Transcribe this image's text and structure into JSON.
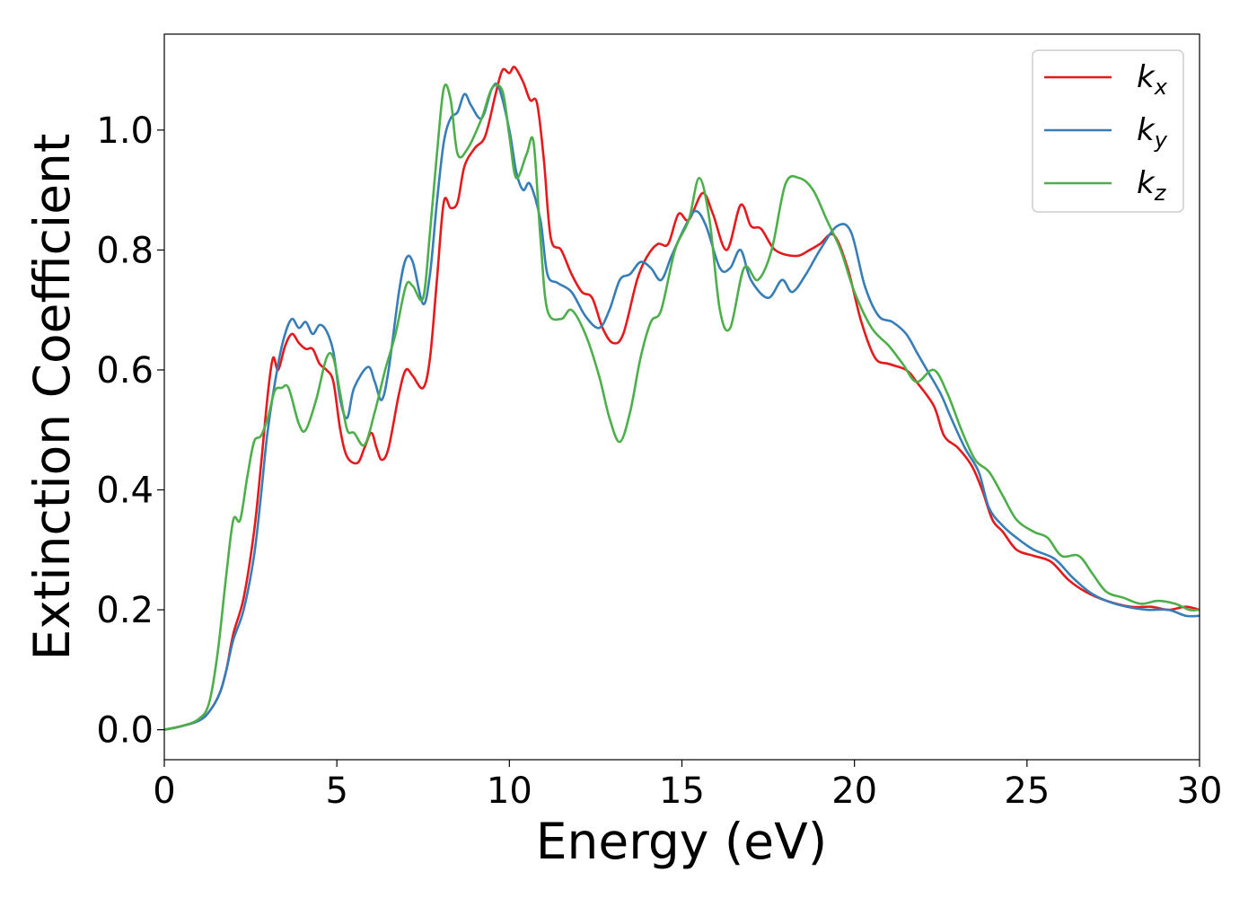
{
  "chart_data": {
    "type": "line",
    "title": "",
    "xlabel": "Energy (eV)",
    "ylabel": "Extinction Coefficient",
    "xlim": [
      0,
      30
    ],
    "ylim": [
      -0.05,
      1.16
    ],
    "xticks": [
      0,
      5,
      10,
      15,
      20,
      25,
      30
    ],
    "yticks": [
      0.0,
      0.2,
      0.4,
      0.6,
      0.8,
      1.0
    ],
    "grid": false,
    "legend_position": "top-right",
    "series": [
      {
        "name": "k",
        "subscript": "x",
        "color": "#e41a1c",
        "points": [
          [
            0,
            0
          ],
          [
            0.5,
            0.006
          ],
          [
            1,
            0.015
          ],
          [
            1.3,
            0.03
          ],
          [
            1.6,
            0.06
          ],
          [
            1.8,
            0.1
          ],
          [
            2,
            0.16
          ],
          [
            2.3,
            0.22
          ],
          [
            2.6,
            0.33
          ],
          [
            2.8,
            0.44
          ],
          [
            3,
            0.56
          ],
          [
            3.15,
            0.62
          ],
          [
            3.3,
            0.6
          ],
          [
            3.5,
            0.64
          ],
          [
            3.7,
            0.66
          ],
          [
            3.9,
            0.645
          ],
          [
            4.1,
            0.635
          ],
          [
            4.3,
            0.635
          ],
          [
            4.5,
            0.61
          ],
          [
            4.7,
            0.6
          ],
          [
            4.9,
            0.58
          ],
          [
            5.1,
            0.5
          ],
          [
            5.3,
            0.455
          ],
          [
            5.6,
            0.445
          ],
          [
            5.8,
            0.47
          ],
          [
            6,
            0.495
          ],
          [
            6.15,
            0.47
          ],
          [
            6.3,
            0.45
          ],
          [
            6.5,
            0.47
          ],
          [
            6.8,
            0.56
          ],
          [
            7,
            0.6
          ],
          [
            7.2,
            0.59
          ],
          [
            7.5,
            0.57
          ],
          [
            7.7,
            0.62
          ],
          [
            7.9,
            0.75
          ],
          [
            8.1,
            0.88
          ],
          [
            8.3,
            0.87
          ],
          [
            8.5,
            0.88
          ],
          [
            8.7,
            0.94
          ],
          [
            9,
            0.97
          ],
          [
            9.3,
            0.99
          ],
          [
            9.6,
            1.06
          ],
          [
            9.8,
            1.1
          ],
          [
            10,
            1.095
          ],
          [
            10.15,
            1.105
          ],
          [
            10.4,
            1.08
          ],
          [
            10.6,
            1.05
          ],
          [
            10.8,
            1.045
          ],
          [
            11,
            0.95
          ],
          [
            11.2,
            0.82
          ],
          [
            11.5,
            0.8
          ],
          [
            11.8,
            0.76
          ],
          [
            12.1,
            0.73
          ],
          [
            12.4,
            0.72
          ],
          [
            12.7,
            0.67
          ],
          [
            13,
            0.645
          ],
          [
            13.3,
            0.66
          ],
          [
            13.7,
            0.75
          ],
          [
            14,
            0.79
          ],
          [
            14.3,
            0.81
          ],
          [
            14.6,
            0.81
          ],
          [
            14.9,
            0.86
          ],
          [
            15.2,
            0.85
          ],
          [
            15.6,
            0.895
          ],
          [
            15.9,
            0.86
          ],
          [
            16.3,
            0.8
          ],
          [
            16.7,
            0.875
          ],
          [
            17,
            0.84
          ],
          [
            17.3,
            0.835
          ],
          [
            17.7,
            0.8
          ],
          [
            18.3,
            0.79
          ],
          [
            18.7,
            0.8
          ],
          [
            19,
            0.81
          ],
          [
            19.4,
            0.825
          ],
          [
            19.8,
            0.77
          ],
          [
            20.2,
            0.68
          ],
          [
            20.6,
            0.62
          ],
          [
            21,
            0.61
          ],
          [
            21.5,
            0.6
          ],
          [
            21.8,
            0.58
          ],
          [
            22.3,
            0.54
          ],
          [
            22.6,
            0.49
          ],
          [
            23,
            0.47
          ],
          [
            23.4,
            0.44
          ],
          [
            23.7,
            0.4
          ],
          [
            24,
            0.35
          ],
          [
            24.3,
            0.33
          ],
          [
            24.7,
            0.3
          ],
          [
            25.2,
            0.29
          ],
          [
            25.7,
            0.28
          ],
          [
            26.2,
            0.25
          ],
          [
            26.7,
            0.23
          ],
          [
            27.3,
            0.215
          ],
          [
            28,
            0.205
          ],
          [
            28.6,
            0.205
          ],
          [
            29.1,
            0.2
          ],
          [
            29.6,
            0.205
          ],
          [
            30,
            0.2
          ]
        ]
      },
      {
        "name": "k",
        "subscript": "y",
        "color": "#377eb8",
        "points": [
          [
            0,
            0
          ],
          [
            0.5,
            0.006
          ],
          [
            1,
            0.015
          ],
          [
            1.3,
            0.03
          ],
          [
            1.6,
            0.06
          ],
          [
            1.8,
            0.1
          ],
          [
            2,
            0.15
          ],
          [
            2.3,
            0.2
          ],
          [
            2.6,
            0.29
          ],
          [
            2.8,
            0.39
          ],
          [
            3,
            0.5
          ],
          [
            3.3,
            0.61
          ],
          [
            3.5,
            0.66
          ],
          [
            3.7,
            0.685
          ],
          [
            3.9,
            0.67
          ],
          [
            4.1,
            0.68
          ],
          [
            4.3,
            0.66
          ],
          [
            4.5,
            0.675
          ],
          [
            4.7,
            0.665
          ],
          [
            4.9,
            0.63
          ],
          [
            5.1,
            0.55
          ],
          [
            5.3,
            0.52
          ],
          [
            5.5,
            0.57
          ],
          [
            5.9,
            0.605
          ],
          [
            6.1,
            0.58
          ],
          [
            6.3,
            0.55
          ],
          [
            6.5,
            0.6
          ],
          [
            6.8,
            0.73
          ],
          [
            7,
            0.785
          ],
          [
            7.2,
            0.78
          ],
          [
            7.5,
            0.71
          ],
          [
            7.7,
            0.76
          ],
          [
            7.9,
            0.88
          ],
          [
            8.1,
            0.98
          ],
          [
            8.3,
            1.02
          ],
          [
            8.5,
            1.03
          ],
          [
            8.7,
            1.06
          ],
          [
            8.9,
            1.04
          ],
          [
            9.2,
            1.02
          ],
          [
            9.5,
            1.07
          ],
          [
            9.7,
            1.07
          ],
          [
            10,
            1.0
          ],
          [
            10.2,
            0.93
          ],
          [
            10.4,
            0.9
          ],
          [
            10.6,
            0.91
          ],
          [
            10.9,
            0.85
          ],
          [
            11.1,
            0.76
          ],
          [
            11.4,
            0.745
          ],
          [
            11.8,
            0.73
          ],
          [
            12.2,
            0.69
          ],
          [
            12.6,
            0.67
          ],
          [
            12.9,
            0.7
          ],
          [
            13.2,
            0.75
          ],
          [
            13.5,
            0.76
          ],
          [
            13.8,
            0.78
          ],
          [
            14.1,
            0.77
          ],
          [
            14.4,
            0.75
          ],
          [
            14.7,
            0.79
          ],
          [
            15.1,
            0.84
          ],
          [
            15.4,
            0.865
          ],
          [
            15.7,
            0.84
          ],
          [
            16.1,
            0.77
          ],
          [
            16.4,
            0.77
          ],
          [
            16.7,
            0.8
          ],
          [
            17,
            0.75
          ],
          [
            17.5,
            0.72
          ],
          [
            17.9,
            0.75
          ],
          [
            18.2,
            0.73
          ],
          [
            18.6,
            0.76
          ],
          [
            19,
            0.8
          ],
          [
            19.5,
            0.84
          ],
          [
            19.9,
            0.83
          ],
          [
            20.3,
            0.74
          ],
          [
            20.7,
            0.69
          ],
          [
            21.1,
            0.68
          ],
          [
            21.5,
            0.66
          ],
          [
            21.8,
            0.63
          ],
          [
            22.1,
            0.6
          ],
          [
            22.5,
            0.56
          ],
          [
            22.8,
            0.52
          ],
          [
            23.2,
            0.47
          ],
          [
            23.6,
            0.43
          ],
          [
            23.9,
            0.37
          ],
          [
            24.3,
            0.34
          ],
          [
            24.7,
            0.32
          ],
          [
            25.2,
            0.3
          ],
          [
            25.8,
            0.285
          ],
          [
            26.3,
            0.255
          ],
          [
            26.8,
            0.23
          ],
          [
            27.3,
            0.215
          ],
          [
            27.9,
            0.205
          ],
          [
            28.5,
            0.2
          ],
          [
            29.1,
            0.2
          ],
          [
            29.6,
            0.19
          ],
          [
            30,
            0.19
          ]
        ]
      },
      {
        "name": "k",
        "subscript": "z",
        "color": "#4daf4a",
        "points": [
          [
            0,
            0
          ],
          [
            0.5,
            0.006
          ],
          [
            1,
            0.018
          ],
          [
            1.3,
            0.045
          ],
          [
            1.55,
            0.13
          ],
          [
            1.8,
            0.26
          ],
          [
            2,
            0.35
          ],
          [
            2.2,
            0.35
          ],
          [
            2.4,
            0.42
          ],
          [
            2.6,
            0.48
          ],
          [
            2.8,
            0.49
          ],
          [
            3,
            0.52
          ],
          [
            3.2,
            0.565
          ],
          [
            3.4,
            0.57
          ],
          [
            3.6,
            0.57
          ],
          [
            3.9,
            0.51
          ],
          [
            4.1,
            0.5
          ],
          [
            4.4,
            0.55
          ],
          [
            4.7,
            0.62
          ],
          [
            4.9,
            0.62
          ],
          [
            5.1,
            0.56
          ],
          [
            5.3,
            0.5
          ],
          [
            5.5,
            0.495
          ],
          [
            5.8,
            0.475
          ],
          [
            6.1,
            0.53
          ],
          [
            6.4,
            0.6
          ],
          [
            6.7,
            0.66
          ],
          [
            7,
            0.74
          ],
          [
            7.2,
            0.74
          ],
          [
            7.5,
            0.72
          ],
          [
            7.7,
            0.83
          ],
          [
            7.9,
            0.96
          ],
          [
            8.1,
            1.07
          ],
          [
            8.3,
            1.05
          ],
          [
            8.5,
            0.96
          ],
          [
            8.8,
            0.97
          ],
          [
            9.2,
            1.02
          ],
          [
            9.5,
            1.07
          ],
          [
            9.8,
            1.065
          ],
          [
            10,
            0.99
          ],
          [
            10.2,
            0.92
          ],
          [
            10.5,
            0.96
          ],
          [
            10.7,
            0.98
          ],
          [
            10.9,
            0.82
          ],
          [
            11.1,
            0.7
          ],
          [
            11.5,
            0.685
          ],
          [
            11.8,
            0.7
          ],
          [
            12.2,
            0.66
          ],
          [
            12.6,
            0.59
          ],
          [
            12.9,
            0.52
          ],
          [
            13.2,
            0.48
          ],
          [
            13.5,
            0.53
          ],
          [
            13.8,
            0.62
          ],
          [
            14.1,
            0.68
          ],
          [
            14.4,
            0.7
          ],
          [
            14.8,
            0.8
          ],
          [
            15.2,
            0.85
          ],
          [
            15.5,
            0.92
          ],
          [
            15.8,
            0.85
          ],
          [
            16.1,
            0.7
          ],
          [
            16.4,
            0.67
          ],
          [
            16.8,
            0.77
          ],
          [
            17.2,
            0.75
          ],
          [
            17.6,
            0.8
          ],
          [
            18,
            0.91
          ],
          [
            18.4,
            0.92
          ],
          [
            18.8,
            0.9
          ],
          [
            19.2,
            0.85
          ],
          [
            19.6,
            0.8
          ],
          [
            20,
            0.73
          ],
          [
            20.5,
            0.67
          ],
          [
            21,
            0.64
          ],
          [
            21.4,
            0.61
          ],
          [
            21.8,
            0.58
          ],
          [
            22.3,
            0.6
          ],
          [
            22.7,
            0.56
          ],
          [
            23.1,
            0.5
          ],
          [
            23.5,
            0.45
          ],
          [
            23.9,
            0.43
          ],
          [
            24.3,
            0.39
          ],
          [
            24.7,
            0.35
          ],
          [
            25.2,
            0.33
          ],
          [
            25.6,
            0.32
          ],
          [
            26,
            0.29
          ],
          [
            26.5,
            0.29
          ],
          [
            26.9,
            0.26
          ],
          [
            27.3,
            0.23
          ],
          [
            27.8,
            0.22
          ],
          [
            28.3,
            0.21
          ],
          [
            28.8,
            0.215
          ],
          [
            29.3,
            0.21
          ],
          [
            29.7,
            0.2
          ],
          [
            30,
            0.2
          ]
        ]
      }
    ]
  }
}
